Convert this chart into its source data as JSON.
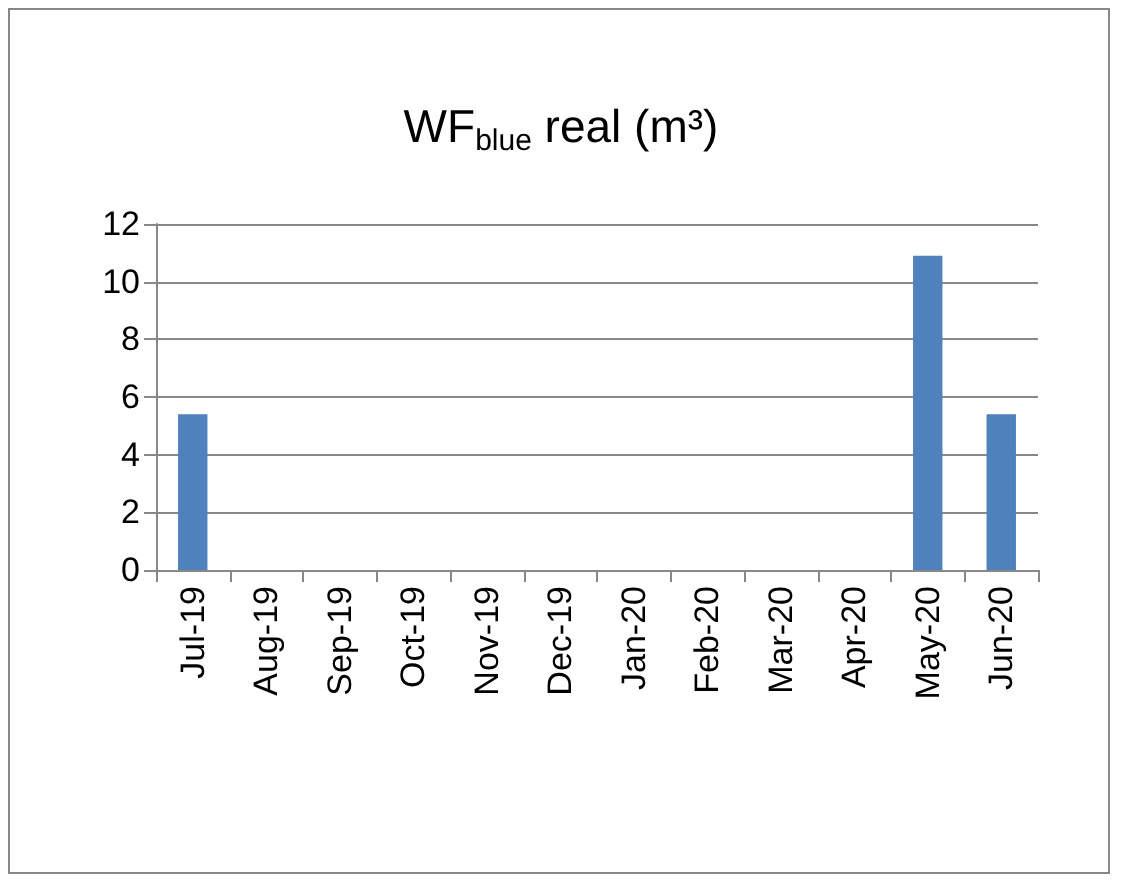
{
  "chart_data": {
    "type": "bar",
    "title": "WF$_{blue}$ real (m³)",
    "categories": [
      "Jul-19",
      "Aug-19",
      "Sep-19",
      "Oct-19",
      "Nov-19",
      "Dec-19",
      "Jan-20",
      "Feb-20",
      "Mar-20",
      "Apr-20",
      "May-20",
      "Jun-20"
    ],
    "values": [
      5.4,
      0,
      0,
      0,
      0,
      0,
      0,
      0,
      0,
      0,
      10.9,
      5.4
    ],
    "color": "#4f81bd",
    "ylim": [
      0,
      12
    ],
    "yticks": [
      0,
      2,
      4,
      6,
      8,
      10,
      12
    ],
    "grid": "y"
  }
}
